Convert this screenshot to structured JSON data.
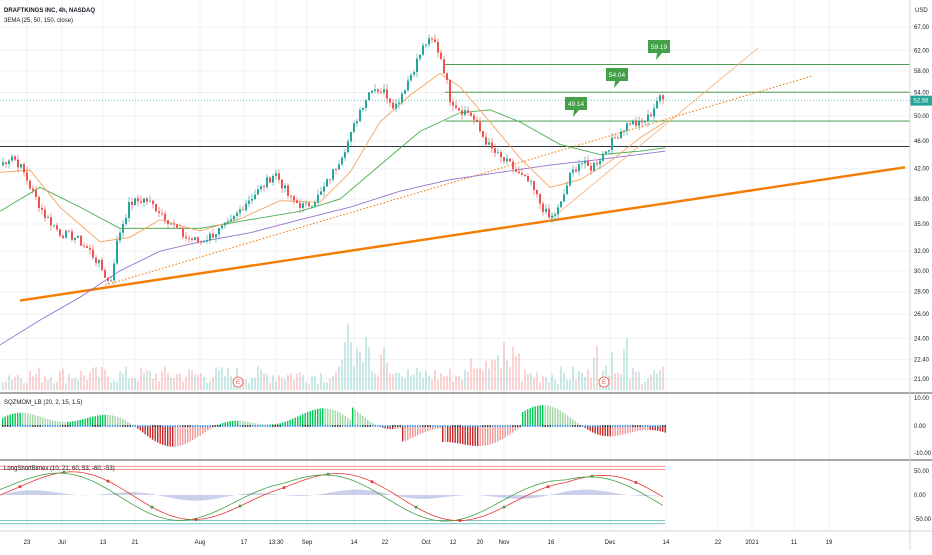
{
  "header": {
    "symbol_line": "DRAFTKINGS INC, 4h, NASDAQ",
    "ema_label": "3EMA (25, 50, 150, close)",
    "currency": "USD"
  },
  "colors": {
    "up": "#26a69a",
    "down": "#ef5350",
    "ema25": "#f7a35c",
    "ema50": "#4caf50",
    "ema150": "#9575cd",
    "trend": "#f57c00",
    "level": "#388e3c",
    "flag": "#43a047",
    "last": "#26a69a",
    "grid": "#eef0f4"
  },
  "chart_data": [
    {
      "type": "candlestick",
      "name": "main-price",
      "y_scale": "log",
      "y_ticks": [
        21.0,
        22.4,
        24.0,
        26.0,
        28.0,
        30.0,
        32.0,
        35.0,
        38.0,
        42.0,
        46.0,
        50.0,
        54.0,
        58.0,
        62.0,
        67.0
      ],
      "x_ticks": [
        "23",
        "Jul",
        "13",
        "21",
        "Aug",
        "17",
        "13:30",
        "Sep",
        "14",
        "22",
        "Oct",
        "12",
        "20",
        "Nov",
        "16",
        "Dec",
        "14",
        "22",
        "2021",
        "11",
        "19"
      ],
      "last_price": "52.56",
      "price_waypoints": [
        [
          0,
          42.5
        ],
        [
          12,
          43.8
        ],
        [
          22,
          42.0
        ],
        [
          32,
          39.0
        ],
        [
          45,
          36.0
        ],
        [
          60,
          34.0
        ],
        [
          75,
          33.5
        ],
        [
          90,
          32.0
        ],
        [
          100,
          30.5
        ],
        [
          110,
          28.6
        ],
        [
          118,
          33.5
        ],
        [
          130,
          37.5
        ],
        [
          145,
          38.0
        ],
        [
          160,
          36.5
        ],
        [
          172,
          35.0
        ],
        [
          185,
          33.5
        ],
        [
          200,
          33.0
        ],
        [
          215,
          34.0
        ],
        [
          230,
          35.0
        ],
        [
          245,
          37.5
        ],
        [
          262,
          39.5
        ],
        [
          275,
          41.5
        ],
        [
          290,
          38.0
        ],
        [
          305,
          37.0
        ],
        [
          320,
          38.5
        ],
        [
          335,
          42.0
        ],
        [
          350,
          46.5
        ],
        [
          360,
          51.0
        ],
        [
          372,
          55.0
        ],
        [
          385,
          54.0
        ],
        [
          395,
          51.5
        ],
        [
          405,
          55.0
        ],
        [
          415,
          59.0
        ],
        [
          425,
          63.5
        ],
        [
          434,
          64.0
        ],
        [
          442,
          60.0
        ],
        [
          450,
          53.0
        ],
        [
          460,
          51.0
        ],
        [
          470,
          50.5
        ],
        [
          480,
          47.5
        ],
        [
          490,
          45.0
        ],
        [
          500,
          43.5
        ],
        [
          510,
          42.5
        ],
        [
          520,
          41.0
        ],
        [
          530,
          40.0
        ],
        [
          540,
          37.5
        ],
        [
          550,
          35.5
        ],
        [
          560,
          37.0
        ],
        [
          570,
          41.0
        ],
        [
          580,
          43.0
        ],
        [
          590,
          42.0
        ],
        [
          600,
          43.5
        ],
        [
          610,
          45.5
        ],
        [
          620,
          47.5
        ],
        [
          630,
          49.0
        ],
        [
          640,
          48.5
        ],
        [
          650,
          50.0
        ],
        [
          658,
          53.0
        ],
        [
          665,
          52.56
        ]
      ],
      "ema25": [
        [
          0,
          41.5
        ],
        [
          30,
          41.8
        ],
        [
          60,
          37.0
        ],
        [
          100,
          33.0
        ],
        [
          130,
          33.5
        ],
        [
          160,
          35.5
        ],
        [
          200,
          34.2
        ],
        [
          240,
          35.6
        ],
        [
          280,
          37.8
        ],
        [
          320,
          37.6
        ],
        [
          350,
          41.5
        ],
        [
          380,
          49.0
        ],
        [
          410,
          53.5
        ],
        [
          440,
          57.5
        ],
        [
          460,
          55.0
        ],
        [
          490,
          49.0
        ],
        [
          520,
          43.5
        ],
        [
          550,
          39.5
        ],
        [
          580,
          40.5
        ],
        [
          610,
          43.0
        ],
        [
          640,
          46.5
        ],
        [
          665,
          49.0
        ]
      ],
      "ema50": [
        [
          0,
          36.5
        ],
        [
          40,
          39.5
        ],
        [
          80,
          37.0
        ],
        [
          120,
          34.5
        ],
        [
          160,
          34.5
        ],
        [
          200,
          34.5
        ],
        [
          250,
          35.5
        ],
        [
          300,
          36.5
        ],
        [
          340,
          38.0
        ],
        [
          380,
          42.5
        ],
        [
          420,
          47.5
        ],
        [
          460,
          50.5
        ],
        [
          490,
          51.0
        ],
        [
          520,
          49.0
        ],
        [
          560,
          45.5
        ],
        [
          600,
          44.0
        ],
        [
          640,
          44.5
        ],
        [
          665,
          45.0
        ]
      ],
      "ema150": [
        [
          0,
          23.5
        ],
        [
          40,
          25.5
        ],
        [
          80,
          27.5
        ],
        [
          120,
          30.0
        ],
        [
          160,
          32.0
        ],
        [
          200,
          33.0
        ],
        [
          250,
          34.0
        ],
        [
          300,
          35.5
        ],
        [
          350,
          37.0
        ],
        [
          400,
          39.0
        ],
        [
          450,
          40.5
        ],
        [
          500,
          41.5
        ],
        [
          550,
          42.5
        ],
        [
          600,
          43.3
        ],
        [
          665,
          44.5
        ]
      ],
      "levels": [
        {
          "name": "level-59",
          "price": 59.19,
          "label": "59.19"
        },
        {
          "name": "level-54",
          "price": 54.04,
          "label": "54.04"
        },
        {
          "name": "level-49",
          "price": 49.14,
          "label": "49.14"
        },
        {
          "name": "level-45",
          "price": 45.2,
          "label": ""
        }
      ],
      "trendlines": [
        {
          "name": "lower-support-line",
          "from": [
            20,
            27.2
          ],
          "to": [
            905,
            42.2
          ],
          "style": "thick"
        },
        {
          "name": "dotted-trend-line",
          "from": [
            105,
            28.6
          ],
          "to": [
            812,
            57.0
          ],
          "style": "dotted"
        },
        {
          "name": "rising-channel-line",
          "from": [
            548,
            35.3
          ],
          "to": [
            758,
            62.5
          ],
          "style": "thin"
        }
      ]
    },
    {
      "type": "bar",
      "name": "volume",
      "volume_markers": [
        "E",
        "E"
      ]
    },
    {
      "type": "histogram",
      "name": "sqzmom",
      "label": "SQZMOM_LB (20, 2, 15, 1.5)",
      "y_ticks": [
        "10.00",
        "0.00",
        "-10.00"
      ]
    },
    {
      "type": "line",
      "name": "longshort",
      "label": "LongShortBimex (10, 21, 60, 53, -60, -53)",
      "y_ticks": [
        "50.00",
        "0.00",
        "-50.00"
      ]
    }
  ]
}
